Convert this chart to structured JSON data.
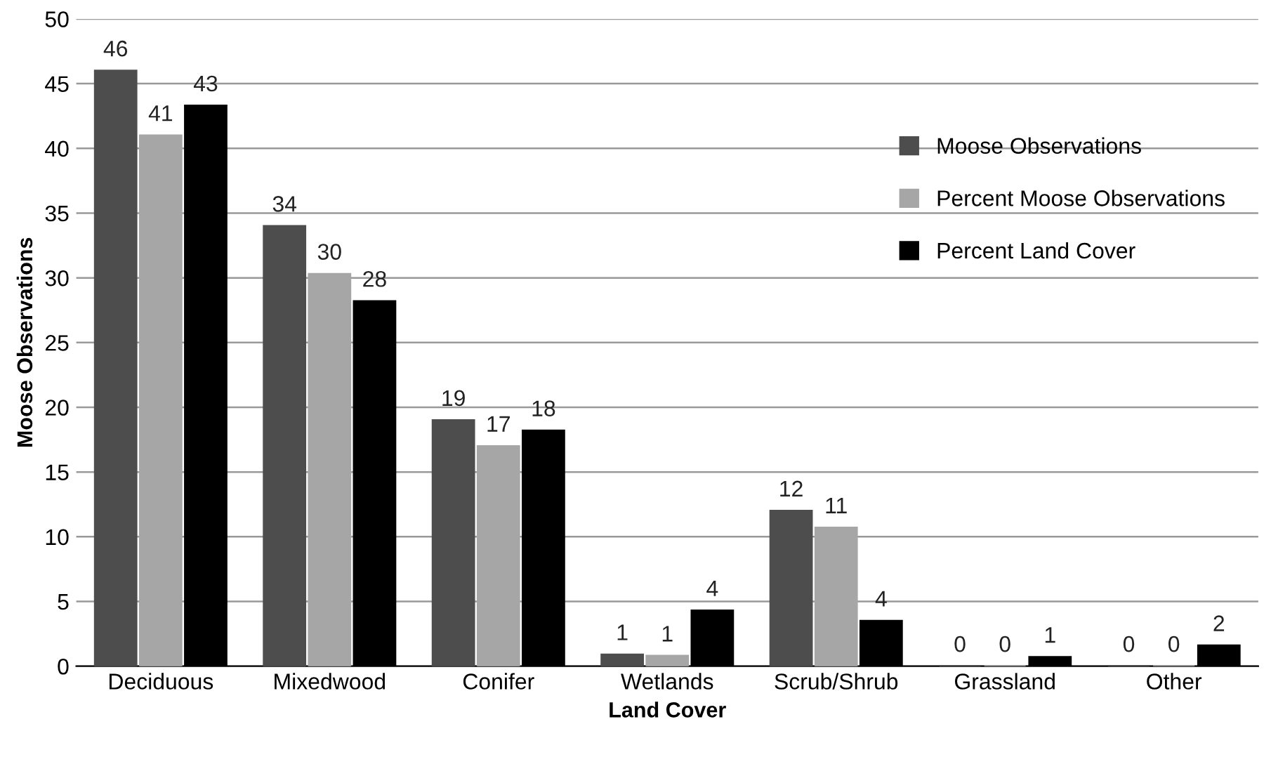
{
  "chart_data": {
    "type": "bar",
    "xlabel": "Land Cover",
    "ylabel": "Moose Observations",
    "categories": [
      "Deciduous",
      "Mixedwood",
      "Conifer",
      "Wetlands",
      "Scrub/Shrub",
      "Grassland",
      "Other"
    ],
    "series": [
      {
        "name": "Moose Observations",
        "color": "#4d4d4d",
        "values": [
          46,
          34,
          19,
          0.9,
          12,
          0,
          0
        ],
        "value_labels": [
          "46",
          "34",
          "19",
          "1",
          "12",
          "0",
          "0"
        ]
      },
      {
        "name": "Percent Moose Observations",
        "color": "#a6a6a6",
        "values": [
          41,
          30.3,
          17,
          0.8,
          10.7,
          0,
          0
        ],
        "value_labels": [
          "41",
          "30",
          "17",
          "1",
          "11",
          "0",
          "0"
        ]
      },
      {
        "name": "Percent Land Cover",
        "color": "#000000",
        "values": [
          43.3,
          28.2,
          18.2,
          4.3,
          3.5,
          0.7,
          1.6
        ],
        "value_labels": [
          "43",
          "28",
          "18",
          "4",
          "4",
          "1",
          "2"
        ]
      }
    ],
    "ylim": [
      0,
      50
    ],
    "yticks": [
      0,
      5,
      10,
      15,
      20,
      25,
      30,
      35,
      40,
      45,
      50
    ],
    "grid": "y",
    "legend": "right"
  }
}
